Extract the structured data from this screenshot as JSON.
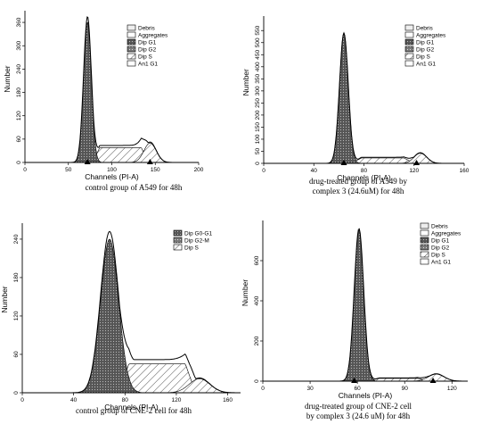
{
  "chart_data": [
    {
      "type": "area",
      "id": "p1",
      "caption": "control group of A549 for 48h",
      "xlabel": "Channels (PI-A)",
      "ylabel": "Number",
      "xlim": [
        0,
        200
      ],
      "ylim": [
        0,
        390
      ],
      "xticks": [
        0,
        50,
        100,
        150,
        200
      ],
      "yticks": [
        0,
        60,
        120,
        180,
        240,
        300,
        360
      ],
      "legend": [
        "Debris",
        "Aggregates",
        "Dip G1",
        "Dip G2",
        "Dip S",
        "An1 G1"
      ],
      "markers": [
        72,
        144
      ],
      "g1": {
        "mean": 72,
        "sd": 4.5,
        "height": 360
      },
      "g2": {
        "mean": 144,
        "sd": 7,
        "height": 50
      },
      "s": {
        "from": 78,
        "to": 142,
        "level": 38
      },
      "outline_height": 375
    },
    {
      "type": "area",
      "id": "p2",
      "caption": "drug-treated group of A549 by complex 3 (24.6uM) for 48h",
      "xlabel": "Channels (PI-A)",
      "ylabel": "Number",
      "xlim": [
        0,
        160
      ],
      "ylim": [
        0,
        610
      ],
      "xticks": [
        0,
        40,
        80,
        120,
        160
      ],
      "yticks": [
        0,
        50,
        100,
        150,
        200,
        250,
        300,
        350,
        400,
        450,
        500,
        550
      ],
      "legend": [
        "Debris",
        "Aggregates",
        "Dip G1",
        "Dip G2",
        "Dip S",
        "An1 G1"
      ],
      "markers": [
        64,
        122
      ],
      "g1": {
        "mean": 64,
        "sd": 3.5,
        "height": 540
      },
      "g2": {
        "mean": 125,
        "sd": 5,
        "height": 42
      },
      "s": {
        "from": 70,
        "to": 120,
        "level": 22
      },
      "outline_height": 540
    },
    {
      "type": "area",
      "id": "p3",
      "caption": "control group of CNE-2 cell for 48h",
      "xlabel": "Channels (PI-A)",
      "ylabel": "Number",
      "xlim": [
        0,
        170
      ],
      "ylim": [
        0,
        265
      ],
      "xticks": [
        0,
        40,
        80,
        120,
        160
      ],
      "yticks": [
        0,
        60,
        120,
        180,
        240
      ],
      "legend": [
        "Dip G0-G1",
        "Dip G2-M",
        "Dip S"
      ],
      "markers": [],
      "g1": {
        "mean": 68,
        "sd": 7,
        "height": 240
      },
      "g2": {
        "mean": 138,
        "sd": 8,
        "height": 22
      },
      "s": {
        "from": 75,
        "to": 135,
        "level": 45
      },
      "outline_height": 252
    },
    {
      "type": "area",
      "id": "p4",
      "caption": "drug-treated group of CNE-2 cell by complex 3 (24.6 uM) for 48h",
      "xlabel": "Channels (PI-A)",
      "ylabel": "Number",
      "xlim": [
        0,
        130
      ],
      "ylim": [
        0,
        800
      ],
      "xticks": [
        0,
        30,
        60,
        90,
        120
      ],
      "yticks": [
        0,
        200,
        400,
        600
      ],
      "legend": [
        "Debris",
        "Aggregates",
        "Dip G1",
        "Dip G2",
        "Dip S",
        "An1 G1"
      ],
      "markers": [
        58,
        108
      ],
      "g1": {
        "mean": 61,
        "sd": 3,
        "height": 750
      },
      "g2": {
        "mean": 110,
        "sd": 5,
        "height": 35
      },
      "s": {
        "from": 66,
        "to": 106,
        "level": 14
      },
      "outline_height": 760
    }
  ],
  "colors": {
    "g1": "#444444",
    "g2": "#666666",
    "debris": "#eeeeee",
    "agg": "#ffffff",
    "an1": "#ffffff",
    "line": "#000000"
  }
}
